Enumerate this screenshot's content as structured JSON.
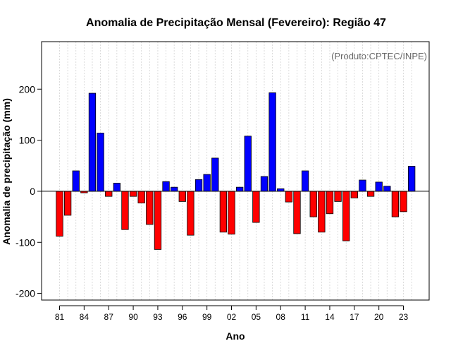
{
  "chart_data": {
    "type": "bar",
    "title": "Anomalia de Precipitação Mensal (Fevereiro): Região 47",
    "xlabel": "Ano",
    "ylabel": "Anomalia de precipitação (mm)",
    "credit": "(Produto:CPTEC/INPE)",
    "ylim": [
      -213,
      293
    ],
    "yticks": [
      -200,
      -100,
      0,
      100,
      200
    ],
    "xtick_labels": [
      "81",
      "84",
      "87",
      "90",
      "93",
      "96",
      "99",
      "02",
      "05",
      "08",
      "11",
      "14",
      "17",
      "20",
      "23"
    ],
    "xtick_years": [
      1981,
      1984,
      1987,
      1990,
      1993,
      1996,
      1999,
      2002,
      2005,
      2008,
      2011,
      2014,
      2017,
      2020,
      2023
    ],
    "grid": true,
    "years": [
      1981,
      1982,
      1983,
      1984,
      1985,
      1986,
      1987,
      1988,
      1989,
      1990,
      1991,
      1992,
      1993,
      1994,
      1995,
      1996,
      1997,
      1998,
      1999,
      2000,
      2001,
      2002,
      2003,
      2004,
      2005,
      2006,
      2007,
      2008,
      2009,
      2010,
      2011,
      2012,
      2013,
      2014,
      2015,
      2016,
      2017,
      2018,
      2019,
      2020,
      2021,
      2022,
      2023,
      2024
    ],
    "values": [
      -88,
      -47,
      40,
      -3,
      192,
      114,
      -10,
      16,
      -75,
      -10,
      -23,
      -65,
      -114,
      19,
      8,
      -20,
      -86,
      23,
      33,
      65,
      -80,
      -84,
      8,
      108,
      -61,
      29,
      193,
      5,
      -21,
      -83,
      40,
      -50,
      -80,
      -44,
      -20,
      -97,
      -13,
      22,
      -10,
      18,
      10,
      -50,
      -40,
      49
    ],
    "colors": {
      "positive": "#0000ff",
      "negative": "#ff0000",
      "border": "#000000",
      "grid": "#d3d3d3"
    }
  }
}
